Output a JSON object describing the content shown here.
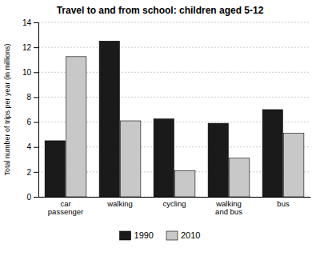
{
  "chart_data": {
    "type": "bar",
    "title": "Travel to and from school: children aged 5-12",
    "ylabel": "Total number of trips per year (in millions)",
    "categories": [
      "car\npassenger",
      "walking",
      "cycling",
      "walking\nand bus",
      "bus"
    ],
    "series": [
      {
        "name": "1990",
        "color": "#1a1a1a",
        "values": [
          4.5,
          12.5,
          6.25,
          5.9,
          7.0
        ]
      },
      {
        "name": "2010",
        "color": "#c8c8c8",
        "values": [
          11.25,
          6.1,
          2.1,
          3.1,
          5.1
        ]
      }
    ],
    "ylim": [
      0,
      14
    ],
    "yticks": [
      0,
      2,
      4,
      6,
      8,
      10,
      12,
      14
    ],
    "grid": true,
    "legend": "bottom"
  }
}
